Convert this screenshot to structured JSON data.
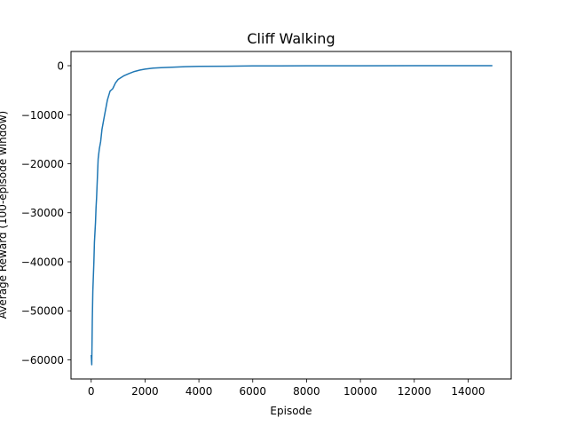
{
  "chart_data": {
    "type": "line",
    "title": "Cliff Walking",
    "xlabel": "Episode",
    "ylabel": "Average Reward (100-episode window)",
    "xlim": [
      -750,
      15600
    ],
    "ylim": [
      -63900,
      2900
    ],
    "xticks": [
      0,
      2000,
      4000,
      6000,
      8000,
      10000,
      12000,
      14000
    ],
    "yticks": [
      0,
      -10000,
      -20000,
      -30000,
      -40000,
      -50000,
      -60000
    ],
    "grid": false,
    "series": [
      {
        "color": "#1f77b4",
        "x": [
          0,
          20,
          40,
          60,
          80,
          100,
          120,
          140,
          160,
          180,
          200,
          230,
          260,
          300,
          350,
          400,
          450,
          500,
          600,
          700,
          800,
          900,
          1000,
          1200,
          1400,
          1600,
          1800,
          2000,
          2300,
          2600,
          3000,
          3500,
          4000,
          5000,
          6000,
          7000,
          8000,
          10000,
          12000,
          14000,
          14900
        ],
        "y": [
          -59000,
          -61000,
          -52000,
          -46000,
          -43000,
          -40000,
          -36000,
          -34000,
          -32000,
          -29000,
          -27000,
          -23000,
          -19000,
          -17000,
          -15500,
          -13000,
          -11500,
          -10000,
          -7000,
          -5200,
          -4700,
          -3500,
          -2800,
          -2100,
          -1600,
          -1200,
          -900,
          -700,
          -500,
          -400,
          -300,
          -200,
          -150,
          -100,
          -50,
          -30,
          -20,
          -10,
          -5,
          0,
          0
        ]
      }
    ]
  }
}
